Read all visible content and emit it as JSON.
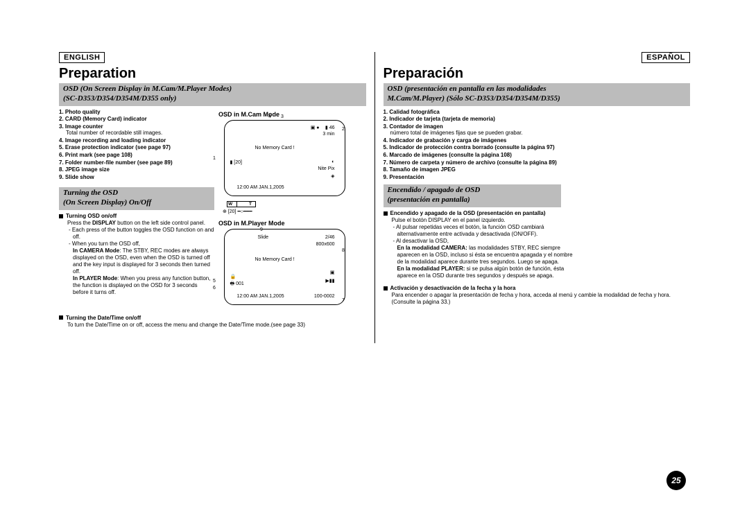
{
  "left": {
    "lang": "ENGLISH",
    "title": "Preparation",
    "section_title_1": "OSD (On Screen Display in M.Cam/M.Player Modes)",
    "section_title_2": "(SC-D353/D354/D354M/D355 only)",
    "items": [
      {
        "n": "1.",
        "t": "Photo quality"
      },
      {
        "n": "2.",
        "t": "CARD (Memory Card) indicator"
      },
      {
        "n": "3.",
        "t": "Image counter",
        "sub": "Total number of recordable still images."
      },
      {
        "n": "4.",
        "t": "Image recording and loading indicator"
      },
      {
        "n": "5.",
        "t": "Erase protection indicator (see page 97)"
      },
      {
        "n": "6.",
        "t": "Print mark (see page 108)"
      },
      {
        "n": "7.",
        "t": "Folder number-file number (see page 89)"
      },
      {
        "n": "8.",
        "t": "JPEG image size"
      },
      {
        "n": "9.",
        "t": "Slide show"
      }
    ],
    "section2_title_1": "Turning the OSD",
    "section2_title_2": "(On Screen Display) On/Off",
    "b1_lead": "Turning OSD on/off",
    "b1_l1": "Press the DISPLAY button on the left side control panel.",
    "b1_l2": "Each press of the button toggles the OSD function on and off.",
    "b1_l3": "When you turn the OSD off,",
    "b1_l4a": "In CAMERA Mode",
    "b1_l4b": ": The STBY, REC modes are always displayed on the OSD, even when the OSD is turned off and the key input is displayed for 3 seconds then turned off.",
    "b1_l5a": "In PLAYER Mode",
    "b1_l5b": ": When you press any function button, the function is displayed on the OSD for 3 seconds before it turns off.",
    "b2_lead": "Turning the Date/Time on/off",
    "b2_l1": "To turn the Date/Time on or off, access the menu and change the Date/Time mode.(see page 33)"
  },
  "mid": {
    "label_top": "OSD in M.Cam Mode",
    "label_bottom": "OSD in M.Player Mode",
    "d1": {
      "c1": "1",
      "c2": "2",
      "c3": "3",
      "c4": "4",
      "top_num": "46",
      "min_line": "3 min",
      "no_card": "No Memory Card !",
      "n1": "1",
      "n20": "[20]",
      "nite": "Nite Pix",
      "date": "12:00 AM  JAN.1,2005",
      "w": "W",
      "t": "T",
      "bottom20": "[20]"
    },
    "d2": {
      "slide": "Slide",
      "size": "800x600",
      "r246": "2/46",
      "no_card": "No Memory Card !",
      "n001": "001",
      "lockrow": "5",
      "printrow": "6",
      "date": "12:00 AM JAN.1,2005",
      "folder": "100-0002",
      "c5": "5",
      "c6": "6",
      "c7": "7",
      "c8": "8",
      "c9": "9"
    }
  },
  "right": {
    "lang": "ESPAÑOL",
    "title": "Preparación",
    "section_title_1": "OSD (presentación en pantalla en las modalidades",
    "section_title_2": "M.Cam/M.Player)  (Sólo SC-D353/D354/D354M/D355)",
    "items": [
      {
        "n": "1.",
        "t": "Calidad fotográfica"
      },
      {
        "n": "2.",
        "t": "Indicador de tarjeta (tarjeta de memoria)"
      },
      {
        "n": "3.",
        "t": "Contador de imagen",
        "sub": "número total de imágenes fijas que se pueden grabar."
      },
      {
        "n": "4.",
        "t": "Indicador de grabación y carga de imágenes"
      },
      {
        "n": "5.",
        "t": "Indicador de protección contra borrado (consulte la página 97)"
      },
      {
        "n": "6.",
        "t": "Marcado de imágenes (consulte la página 108)"
      },
      {
        "n": "7.",
        "t": "Número de carpeta y número de archivo (consulte la página 89)"
      },
      {
        "n": "8.",
        "t": "Tamaño de imagen JPEG"
      },
      {
        "n": "9.",
        "t": "Presentación"
      }
    ],
    "section2_title_1": "Encendido / apagado de OSD",
    "section2_title_2": "(presentación en pantalla)",
    "b1_lead": "Encendido y apagado de la OSD (presentación en pantalla)",
    "b1_l1": "Pulse el botón DISPLAY en el panel izquierdo.",
    "b1_l2": "Al pulsar repetidas veces el botón, la función OSD cambiará alternativamente entre activada y desactivada (ON/OFF).",
    "b1_l3": "Al desactivar la OSD,",
    "b1_l4a": "En la modalidad CAMERA:",
    "b1_l4b": " las modalidades STBY, REC siempre aparecen en la OSD, incluso si ésta se encuentra apagada y el nombre de la modalidad aparece durante tres segundos. Luego se apaga.",
    "b1_l5a": "En la modalidad PLAYER:",
    "b1_l5b": " si se pulsa algún botón de función, ésta aparece en la OSD durante tres segundos y después se apaga.",
    "b2_lead": "Activación y desactivación de la fecha y la hora",
    "b2_l1": "Para encender o apagar la presentación de fecha y hora, acceda al menú y cambie la modalidad de fecha y hora.(Consulte la página 33.)",
    "pagenum": "25"
  }
}
